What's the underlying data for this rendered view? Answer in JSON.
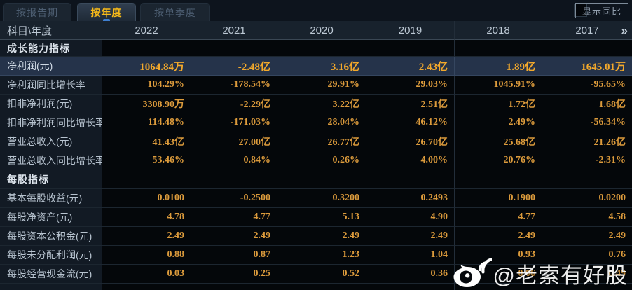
{
  "tabs": [
    {
      "label": "按报告期",
      "active": false
    },
    {
      "label": "按年度",
      "active": true
    },
    {
      "label": "按单季度",
      "active": false
    }
  ],
  "toolbar": {
    "show_yoy_label": "显示同比",
    "checkbox_checked": false
  },
  "table": {
    "corner_label": "科目\\年度",
    "years": [
      "2022",
      "2021",
      "2020",
      "2019",
      "2018",
      "2017"
    ],
    "more_icon": "»",
    "rows": [
      {
        "type": "section",
        "label": "成长能力指标"
      },
      {
        "type": "data",
        "label": "净利润(元)",
        "highlighted": true,
        "values": [
          "1064.84万",
          "-2.48亿",
          "3.16亿",
          "2.43亿",
          "1.89亿",
          "1645.01万"
        ]
      },
      {
        "type": "data",
        "label": "净利润同比增长率",
        "values": [
          "104.29%",
          "-178.54%",
          "29.91%",
          "29.03%",
          "1045.91%",
          "-95.65%"
        ]
      },
      {
        "type": "data",
        "label": "扣非净利润(元)",
        "values": [
          "3308.90万",
          "-2.29亿",
          "3.22亿",
          "2.51亿",
          "1.72亿",
          "1.68亿"
        ]
      },
      {
        "type": "data",
        "label": "扣非净利润同比增长率",
        "values": [
          "114.48%",
          "-171.03%",
          "28.04%",
          "46.12%",
          "2.49%",
          "-56.34%"
        ]
      },
      {
        "type": "data",
        "label": "营业总收入(元)",
        "values": [
          "41.43亿",
          "27.00亿",
          "26.77亿",
          "26.70亿",
          "25.68亿",
          "21.26亿"
        ]
      },
      {
        "type": "data",
        "label": "营业总收入同比增长率",
        "values": [
          "53.46%",
          "0.84%",
          "0.26%",
          "4.00%",
          "20.76%",
          "-2.31%"
        ]
      },
      {
        "type": "section",
        "label": "每股指标",
        "tall": true
      },
      {
        "type": "data",
        "label": "基本每股收益(元)",
        "values": [
          "0.0100",
          "-0.2500",
          "0.3200",
          "0.2493",
          "0.1900",
          "0.0200"
        ]
      },
      {
        "type": "data",
        "label": "每股净资产(元)",
        "values": [
          "4.78",
          "4.77",
          "5.13",
          "4.90",
          "4.77",
          "4.58"
        ]
      },
      {
        "type": "data",
        "label": "每股资本公积金(元)",
        "values": [
          "2.49",
          "2.49",
          "2.49",
          "2.49",
          "2.49",
          "2.49"
        ]
      },
      {
        "type": "data",
        "label": "每股未分配利润(元)",
        "values": [
          "0.88",
          "0.87",
          "1.23",
          "1.04",
          "0.93",
          "0.76"
        ]
      },
      {
        "type": "data",
        "label": "每股经营现金流(元)",
        "values": [
          "0.03",
          "0.25",
          "0.52",
          "0.36",
          "0.06",
          "0.49"
        ]
      },
      {
        "type": "empty"
      }
    ]
  },
  "watermark": {
    "icon": "weibo-icon",
    "handle": "@老索有好股"
  },
  "colors": {
    "accent_value": "#dc9b3c",
    "highlight_value": "#f3a92b",
    "active_tab_text": "#f6b919",
    "highlight_row_bg": "#25334a",
    "header_bg": "#18222d",
    "label_col_bg": "#121a24",
    "value_col_bg": "#04070a"
  }
}
